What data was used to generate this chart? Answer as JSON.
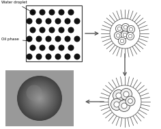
{
  "bg_color": "#ffffff",
  "dot_color": "#111111",
  "edge_color": "#333333",
  "gray_box_color": "#999999",
  "label_water": "Water droplet",
  "label_oil": "Oil phase",
  "n_spikes": 36,
  "fig_w": 2.36,
  "fig_h": 1.89
}
